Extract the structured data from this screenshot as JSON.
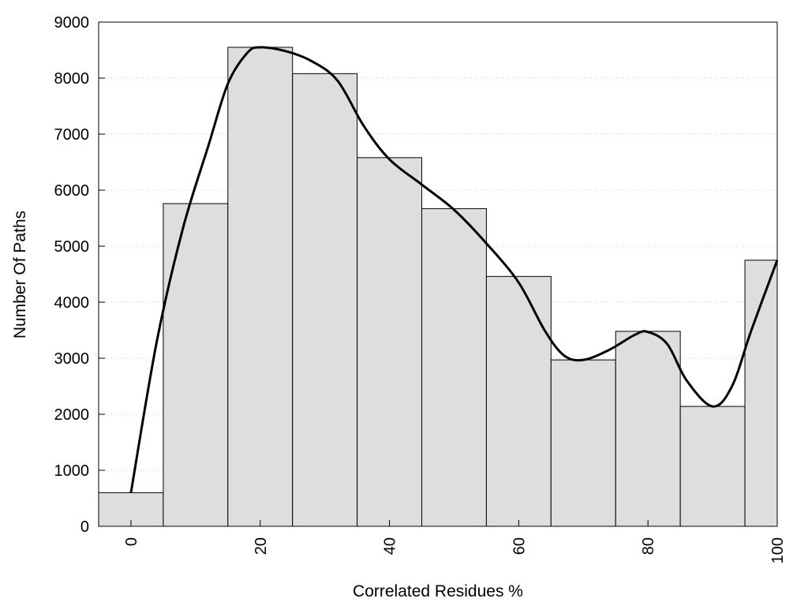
{
  "chart_data": {
    "type": "bar",
    "xlabel": "Correlated Residues %",
    "ylabel": "Number Of Paths",
    "xlim": [
      -5,
      100
    ],
    "ylim": [
      0,
      9000
    ],
    "x_ticks": [
      0,
      20,
      40,
      60,
      80,
      100
    ],
    "y_ticks": [
      0,
      1000,
      2000,
      3000,
      4000,
      5000,
      6000,
      7000,
      8000,
      9000
    ],
    "bar_width": 10,
    "grid": "horizontal-dotted",
    "bars": [
      {
        "x": 0,
        "value": 600
      },
      {
        "x": 10,
        "value": 5760
      },
      {
        "x": 20,
        "value": 8550
      },
      {
        "x": 30,
        "value": 8080
      },
      {
        "x": 40,
        "value": 6580
      },
      {
        "x": 50,
        "value": 5670
      },
      {
        "x": 60,
        "value": 4460
      },
      {
        "x": 70,
        "value": 2970
      },
      {
        "x": 80,
        "value": 3480
      },
      {
        "x": 90,
        "value": 2140
      },
      {
        "x": 100,
        "value": 4750
      }
    ],
    "curve": [
      {
        "x": 0,
        "y": 600
      },
      {
        "x": 4,
        "y": 3300
      },
      {
        "x": 8,
        "y": 5300
      },
      {
        "x": 12,
        "y": 6800
      },
      {
        "x": 15,
        "y": 7900
      },
      {
        "x": 18,
        "y": 8450
      },
      {
        "x": 20,
        "y": 8550
      },
      {
        "x": 24,
        "y": 8480
      },
      {
        "x": 28,
        "y": 8300
      },
      {
        "x": 32,
        "y": 7950
      },
      {
        "x": 36,
        "y": 7150
      },
      {
        "x": 40,
        "y": 6550
      },
      {
        "x": 45,
        "y": 6100
      },
      {
        "x": 50,
        "y": 5650
      },
      {
        "x": 55,
        "y": 5050
      },
      {
        "x": 60,
        "y": 4350
      },
      {
        "x": 64,
        "y": 3500
      },
      {
        "x": 67,
        "y": 3050
      },
      {
        "x": 70,
        "y": 2970
      },
      {
        "x": 74,
        "y": 3150
      },
      {
        "x": 78,
        "y": 3420
      },
      {
        "x": 80,
        "y": 3470
      },
      {
        "x": 83,
        "y": 3250
      },
      {
        "x": 86,
        "y": 2600
      },
      {
        "x": 90,
        "y": 2140
      },
      {
        "x": 93,
        "y": 2500
      },
      {
        "x": 96,
        "y": 3500
      },
      {
        "x": 100,
        "y": 4750
      }
    ],
    "colors": {
      "bar_fill": "#dedede",
      "bar_stroke": "#000000",
      "curve": "#000000",
      "grid": "#c8c8c8"
    }
  }
}
